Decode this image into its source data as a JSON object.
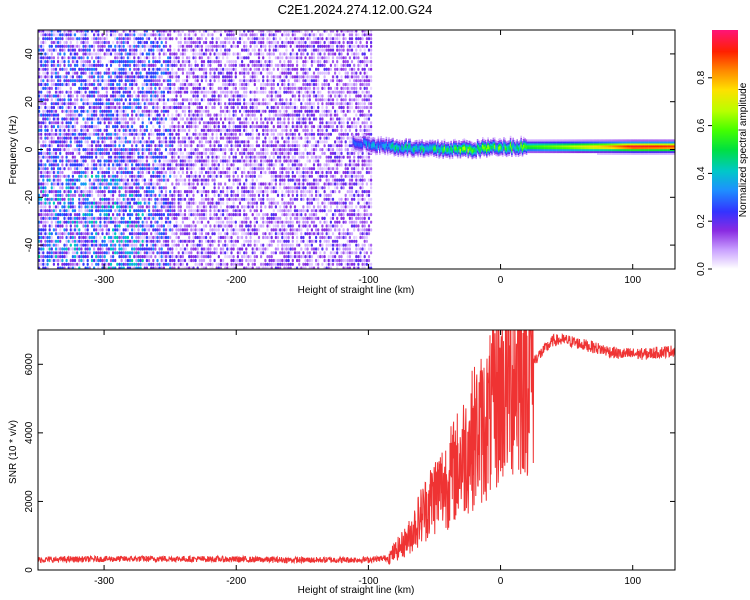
{
  "title": "C2E1.2024.274.12.00.G24",
  "chart_data": [
    {
      "type": "heatmap",
      "xlabel": "Height of straight line (km)",
      "ylabel": "Frequency (Hz)",
      "xlim": [
        -350,
        132
      ],
      "ylim": [
        -50,
        50
      ],
      "xticks": [
        -300,
        -200,
        -100,
        0,
        100
      ],
      "yticks": [
        -40,
        -20,
        0,
        20,
        40
      ],
      "colorbar": {
        "label": "Normalized spectral amplitude",
        "range": [
          0,
          1
        ],
        "ticks": [
          "0.0",
          "0.2",
          "0.4",
          "0.6",
          "0.8"
        ]
      },
      "noise_region_x": [
        -350,
        -100
      ],
      "signal_region_x": [
        -100,
        132
      ],
      "signal_center_freq_hz": 1,
      "signal_ridge": [
        {
          "x": -112,
          "freq": 3,
          "amp": 0.3
        },
        {
          "x": -100,
          "freq": 2,
          "amp": 0.35
        },
        {
          "x": -80,
          "freq": 1,
          "amp": 0.45
        },
        {
          "x": -60,
          "freq": 0,
          "amp": 0.5
        },
        {
          "x": -40,
          "freq": 0,
          "amp": 0.55
        },
        {
          "x": -20,
          "freq": 0,
          "amp": 0.6
        },
        {
          "x": 0,
          "freq": 1,
          "amp": 0.55
        },
        {
          "x": 20,
          "freq": 1,
          "amp": 0.55
        },
        {
          "x": 50,
          "freq": 1,
          "amp": 0.65
        },
        {
          "x": 80,
          "freq": 1,
          "amp": 0.8
        },
        {
          "x": 100,
          "freq": 1,
          "amp": 0.95
        },
        {
          "x": 132,
          "freq": 1,
          "amp": 0.9
        }
      ]
    },
    {
      "type": "line",
      "xlabel": "Height of straight line (km)",
      "ylabel": "SNR (10 * v/v)",
      "xlim": [
        -350,
        132
      ],
      "ylim": [
        0,
        7000
      ],
      "xticks": [
        -300,
        -200,
        -100,
        0,
        100
      ],
      "yticks": [
        0,
        2000,
        4000,
        6000
      ],
      "color": "#ef3333",
      "series": [
        {
          "x": [
            -350,
            -300,
            -250,
            -200,
            -150,
            -100,
            -85,
            -70,
            -60,
            -50,
            -40,
            -30,
            -20,
            -10,
            0,
            10,
            20,
            30,
            40,
            50,
            60,
            70,
            80,
            90,
            100,
            110,
            120,
            132
          ],
          "y": [
            300,
            320,
            330,
            310,
            290,
            300,
            350,
            900,
            1600,
            2200,
            2600,
            3200,
            3900,
            4300,
            5200,
            5700,
            5900,
            6300,
            6700,
            6700,
            6600,
            6500,
            6400,
            6300,
            6300,
            6300,
            6350,
            6400
          ]
        }
      ]
    }
  ]
}
